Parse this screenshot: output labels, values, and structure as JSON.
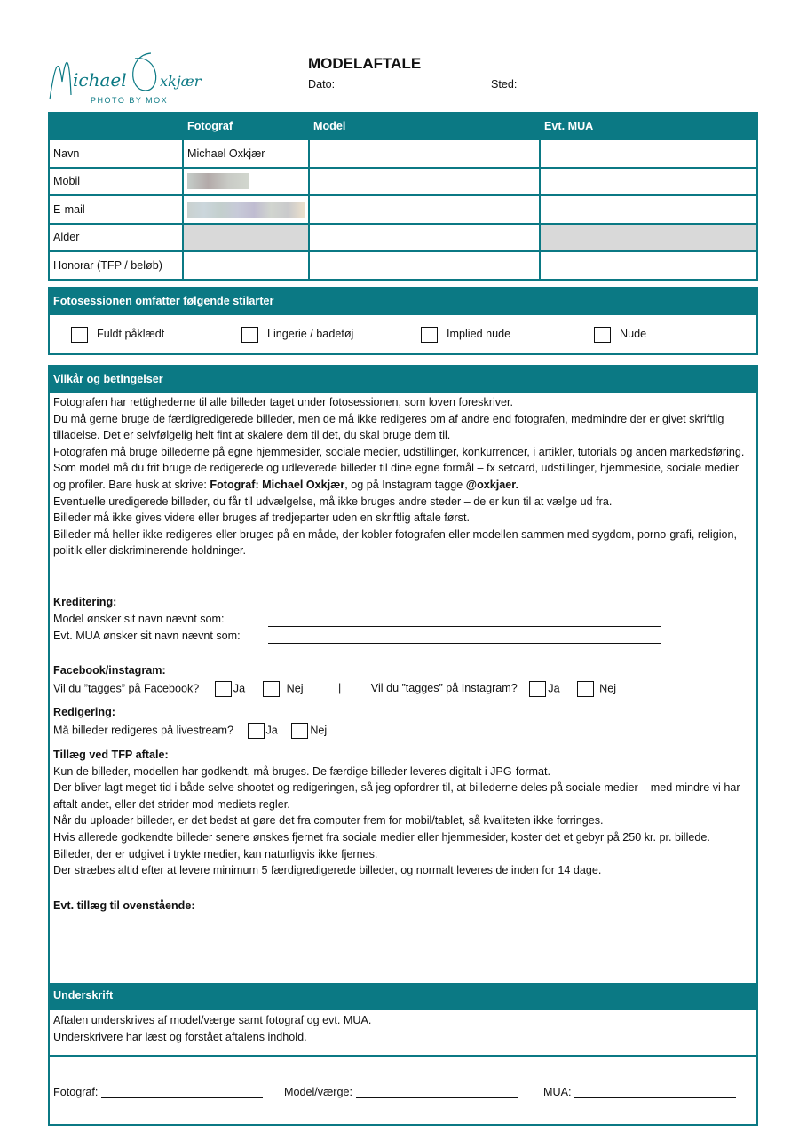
{
  "logo": {
    "text": "Michael Oxkjær",
    "sub": "PHOTO BY MOX"
  },
  "header": {
    "title": "MODELAFTALE",
    "date_label": "Dato:",
    "place_label": "Sted:"
  },
  "table": {
    "columns": [
      "",
      "Fotograf",
      "Model",
      "Evt. MUA"
    ],
    "rows": [
      {
        "label": "Navn",
        "fotograf": "Michael Oxkjær"
      },
      {
        "label": "Mobil"
      },
      {
        "label": "E-mail"
      },
      {
        "label": "Alder"
      },
      {
        "label": "Honorar (TFP / beløb)"
      }
    ]
  },
  "styles": {
    "title": "Fotosessionen omfatter følgende stilarter",
    "options": [
      "Fuldt påklædt",
      "Lingerie / badetøj",
      "Implied nude",
      "Nude"
    ]
  },
  "terms": {
    "title": "Vilkår og betingelser",
    "p1": "Fotografen har rettighederne til alle billeder taget under fotosessionen, som loven foreskriver.",
    "p2": "Du må gerne bruge de færdigredigerede billeder, men de må ikke redigeres om af andre end fotografen, medmindre der er givet skriftlig tilladelse. Det er selvfølgelig helt fint at skalere dem til det, du skal bruge dem til.",
    "p3": "Fotografen må bruge billederne på egne hjemmesider, sociale medier, udstillinger, konkurrencer, i artikler, tutorials og anden markedsføring.",
    "p4a": "Som model må du frit bruge de redigerede og udleverede billeder til dine egne formål – fx setcard, udstillinger, hjemmeside, sociale medier og profiler. Bare husk at skrive: ",
    "p4b": "Fotograf: Michael Oxkjær",
    "p4c": ", og på Instagram tagge ",
    "p4d": "@oxkjaer.",
    "p5": "Eventuelle uredigerede billeder, du får til udvælgelse, må ikke bruges andre steder – de er kun til at vælge ud fra.",
    "p6": "Billeder må ikke gives videre eller bruges af tredjeparter uden en skriftlig aftale først.",
    "p7": "Billeder må heller ikke redigeres eller bruges på en måde, der kobler fotografen eller modellen sammen med sygdom, porno-grafi, religion, politik eller diskriminerende holdninger.",
    "credit_title": "Kreditering:",
    "credit_model": "Model ønsker sit navn nævnt som:",
    "credit_mua": "Evt. MUA ønsker sit navn nævnt som:",
    "social_title": "Facebook/instagram:",
    "fb_q": "Vil du ”tagges” på Facebook?",
    "ig_q": "Vil du ”tagges” på Instagram?",
    "sep": "|",
    "yes": "Ja",
    "no": "Nej",
    "edit_title": "Redigering:",
    "edit_q": "Må billeder redigeres på livestream?",
    "tfp_title": "Tillæg ved TFP aftale:",
    "tfp": [
      "Kun de billeder, modellen har godkendt, må bruges. De færdige billeder leveres digitalt i JPG-format.",
      "Der bliver lagt meget tid i både selve shootet og redigeringen, så jeg opfordrer til, at billederne deles på sociale medier – med mindre vi har aftalt andet, eller det strider mod mediets regler.",
      "Når du uploader billeder, er det bedst at gøre det fra computer frem for mobil/tablet, så kvaliteten ikke forringes.",
      "Hvis allerede godkendte billeder senere ønskes fjernet fra sociale medier eller hjemmesider, koster det et gebyr på 250 kr. pr. billede. Billeder, der er udgivet i trykte medier, kan naturligvis ikke fjernes.",
      "Der stræbes altid efter at levere minimum 5 færdigredigerede billeder, og normalt leveres de inden for 14 dage."
    ],
    "extra": "Evt. tillæg til ovenstående:"
  },
  "signature": {
    "title": "Underskrift",
    "l1": "Aftalen underskrives af model/værge samt fotograf og evt. MUA.",
    "l2": "Underskrivere har læst og forstået aftalens indhold.",
    "fotograf": "Fotograf:",
    "model": "Model/værge:",
    "mua": "MUA:"
  },
  "colors": {
    "accent": "#0b7984"
  }
}
